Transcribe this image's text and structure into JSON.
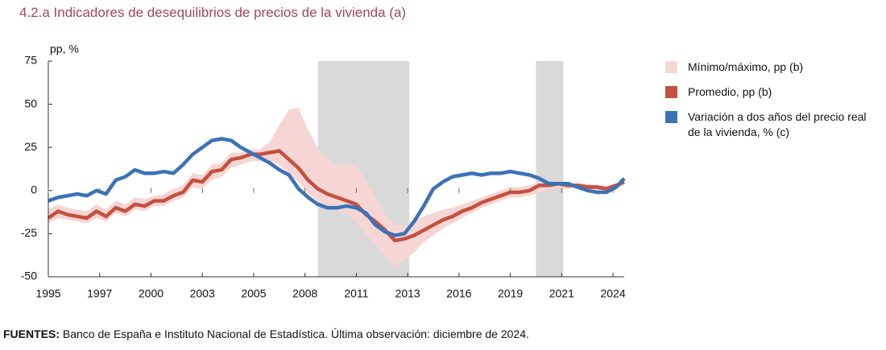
{
  "chart_data": {
    "type": "line",
    "title": "4.2.a  Indicadores de desequilibrios de precios de la vivienda (a)",
    "y_label": "pp, %",
    "source_label": "FUENTES:",
    "source_text": "Banco de España e Instituto Nacional de Estadística. Última observación: diciembre de 2024.",
    "x": [
      "1995-01",
      "1995-07",
      "1996-01",
      "1996-07",
      "1997-01",
      "1997-07",
      "1998-01",
      "1998-07",
      "1999-01",
      "1999-07",
      "2000-01",
      "2000-07",
      "2001-01",
      "2001-07",
      "2002-01",
      "2002-07",
      "2003-01",
      "2003-07",
      "2004-01",
      "2004-07",
      "2005-01",
      "2005-07",
      "2006-01",
      "2006-07",
      "2007-01",
      "2007-07",
      "2008-01",
      "2008-07",
      "2009-01",
      "2009-07",
      "2010-01",
      "2010-07",
      "2011-01",
      "2011-07",
      "2012-01",
      "2012-07",
      "2013-01",
      "2013-07",
      "2014-01",
      "2014-07",
      "2015-01",
      "2015-07",
      "2016-01",
      "2016-07",
      "2017-01",
      "2017-07",
      "2018-01",
      "2018-07",
      "2019-01",
      "2019-07",
      "2020-01",
      "2020-07",
      "2021-01",
      "2021-07",
      "2022-01",
      "2022-07",
      "2023-01",
      "2023-07",
      "2024-01",
      "2024-07",
      "2024-12"
    ],
    "xlim": [
      "1995-01",
      "2024-12"
    ],
    "xticks": [
      {
        "value": "1995-01",
        "label": "1995"
      },
      {
        "value": "1997-09",
        "label": "1997"
      },
      {
        "value": "2000-05",
        "label": "2000"
      },
      {
        "value": "2003-01",
        "label": "2003"
      },
      {
        "value": "2005-09",
        "label": "2005"
      },
      {
        "value": "2008-05",
        "label": "2008"
      },
      {
        "value": "2011-01",
        "label": "2011"
      },
      {
        "value": "2013-09",
        "label": "2013"
      },
      {
        "value": "2016-05",
        "label": "2016"
      },
      {
        "value": "2019-01",
        "label": "2019"
      },
      {
        "value": "2021-09",
        "label": "2021"
      },
      {
        "value": "2024-05",
        "label": "2024"
      }
    ],
    "ylim": [
      -50,
      75
    ],
    "yticks": [
      75,
      50,
      25,
      0,
      -25,
      -50
    ],
    "grid": false,
    "legend": "right",
    "shaded_periods": [
      [
        "2009-01",
        "2013-10"
      ],
      [
        "2020-05",
        "2021-10"
      ]
    ],
    "shade_color": "#d9d9d9",
    "series": [
      {
        "name": "Mínimo/máximo, pp (b)",
        "color": "#f6d6d4",
        "type": "band",
        "max": [
          -11,
          -8,
          -10,
          -11,
          -12,
          -8,
          -11,
          -6,
          -8,
          -4,
          -5,
          -3,
          -2,
          1,
          3,
          10,
          9,
          15,
          16,
          22,
          22,
          24,
          24,
          28,
          38,
          47,
          48,
          35,
          25,
          18,
          15,
          15,
          14,
          6,
          -4,
          -14,
          -20,
          -20,
          -17,
          -15,
          -13,
          -11,
          -10,
          -8,
          -6,
          -4,
          -2,
          0,
          2,
          2,
          3,
          5,
          5,
          5,
          4,
          4,
          4,
          3,
          3,
          4,
          6
        ],
        "min": [
          -19,
          -16,
          -17,
          -18,
          -19,
          -16,
          -18,
          -13,
          -15,
          -11,
          -12,
          -9,
          -9,
          -6,
          -4,
          2,
          1,
          6,
          8,
          13,
          15,
          17,
          17,
          17,
          15,
          10,
          5,
          -2,
          -6,
          -10,
          -12,
          -14,
          -18,
          -25,
          -32,
          -38,
          -44,
          -40,
          -36,
          -30,
          -26,
          -22,
          -19,
          -16,
          -13,
          -10,
          -8,
          -6,
          -4,
          -4,
          -3,
          -1,
          0,
          1,
          1,
          1,
          0,
          0,
          -1,
          1,
          3
        ]
      },
      {
        "name": "Promedio, pp (b)",
        "color": "#c4503f",
        "values": [
          -16,
          -12,
          -14,
          -15,
          -16,
          -12,
          -15,
          -10,
          -12,
          -8,
          -9,
          -6,
          -6,
          -3,
          -1,
          6,
          5,
          11,
          12,
          18,
          19,
          21,
          21,
          22,
          23,
          18,
          13,
          6,
          1,
          -2,
          -4,
          -6,
          -8,
          -14,
          -18,
          -23,
          -29,
          -28,
          -26,
          -23,
          -20,
          -17,
          -15,
          -12,
          -10,
          -7,
          -5,
          -3,
          -1,
          -1,
          0,
          3,
          3,
          4,
          3,
          3,
          2,
          2,
          1,
          3,
          5
        ]
      },
      {
        "name": "Variación a dos años del precio real de la vivienda, % (c)",
        "color": "#3a72b8",
        "values": [
          -6,
          -4,
          -3,
          -2,
          -3,
          0,
          -2,
          6,
          8,
          12,
          10,
          10,
          11,
          10,
          15,
          21,
          25,
          29,
          30,
          29,
          25,
          22,
          19,
          16,
          12,
          9,
          1,
          -4,
          -8,
          -10,
          -10,
          -9,
          -10,
          -13,
          -20,
          -24,
          -26,
          -25,
          -18,
          -9,
          1,
          5,
          8,
          9,
          10,
          9,
          10,
          10,
          11,
          10,
          9,
          7,
          4,
          4,
          4,
          2,
          0,
          -1,
          -1,
          2,
          7
        ]
      }
    ]
  }
}
